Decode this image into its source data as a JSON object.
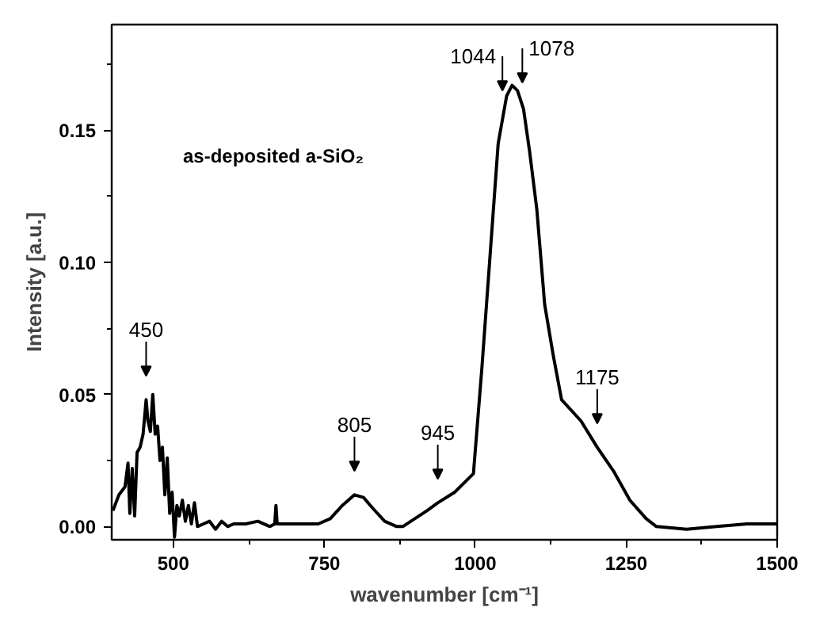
{
  "chart_data": {
    "type": "line",
    "xlabel": "wavenumber [cm⁻¹]",
    "ylabel": "Intensity [a.u.]",
    "xlim": [
      398,
      1500
    ],
    "ylim": [
      -0.005,
      0.19
    ],
    "xticks": [
      500,
      {
        "value": 625,
        "label": null
      },
      750,
      {
        "value": 875,
        "label": null
      },
      1000,
      {
        "value": 1125,
        "label": null
      },
      1250,
      {
        "value": 1375,
        "label": null
      },
      1500
    ],
    "yticks": [
      {
        "value": 0,
        "label": "0.00"
      },
      {
        "value": 0.025,
        "label": null
      },
      {
        "value": 0.05,
        "label": "0.05"
      },
      {
        "value": 0.075,
        "label": null
      },
      {
        "value": 0.1,
        "label": "0.10"
      },
      {
        "value": 0.125,
        "label": null
      },
      {
        "value": 0.15,
        "label": "0.15"
      },
      {
        "value": 0.175,
        "label": null
      }
    ],
    "grid": false,
    "marker": "none",
    "line_style": "solid",
    "annotations": [
      "as-deposited a-SiO₂",
      {
        "text": "450",
        "x": 455,
        "y": 0.048
      },
      {
        "text": "805",
        "x": 800,
        "y": 0.012
      },
      {
        "text": "945",
        "x": 938,
        "y": 0.009
      },
      {
        "text": "1044",
        "x": 1045,
        "y": 0.156
      },
      {
        "text": "1078",
        "x": 1078,
        "y": 0.159
      },
      {
        "text": "1175",
        "x": 1202,
        "y": 0.03
      }
    ],
    "series": [
      {
        "color": "#000000",
        "x": [
          400,
          410,
          420,
          425,
          428,
          432,
          436,
          440,
          445,
          450,
          455,
          458,
          462,
          466,
          470,
          474,
          478,
          482,
          486,
          490,
          494,
          498,
          502,
          506,
          510,
          515,
          520,
          525,
          530,
          535,
          540,
          550,
          560,
          570,
          580,
          590,
          600,
          620,
          640,
          660,
          668,
          670,
          672,
          690,
          720,
          740,
          760,
          780,
          800,
          815,
          830,
          850,
          870,
          880,
          900,
          920,
          938,
          966,
          997,
          1011,
          1025,
          1038,
          1052,
          1061,
          1070,
          1080,
          1090,
          1102,
          1115,
          1129,
          1143,
          1175,
          1202,
          1229,
          1256,
          1283,
          1300,
          1350,
          1400,
          1450,
          1480,
          1500
        ],
        "values": [
          0.006,
          0.012,
          0.015,
          0.024,
          0.005,
          0.022,
          0.004,
          0.028,
          0.03,
          0.035,
          0.048,
          0.04,
          0.036,
          0.05,
          0.035,
          0.038,
          0.025,
          0.03,
          0.012,
          0.026,
          0.005,
          0.013,
          -0.004,
          0.008,
          0.004,
          0.01,
          0.002,
          0.008,
          0.001,
          0.009,
          0.0,
          0.001,
          0.002,
          -0.001,
          0.002,
          0.0,
          0.001,
          0.001,
          0.002,
          0.0,
          0.001,
          0.008,
          0.001,
          0.001,
          0.001,
          0.001,
          0.003,
          0.008,
          0.012,
          0.011,
          0.007,
          0.002,
          0.0,
          0.0,
          0.003,
          0.006,
          0.009,
          0.013,
          0.02,
          0.06,
          0.104,
          0.145,
          0.163,
          0.167,
          0.165,
          0.158,
          0.142,
          0.12,
          0.084,
          0.065,
          0.048,
          0.04,
          0.03,
          0.021,
          0.01,
          0.003,
          0.0,
          -0.001,
          0.0,
          0.001,
          0.001,
          0.001
        ]
      }
    ]
  }
}
